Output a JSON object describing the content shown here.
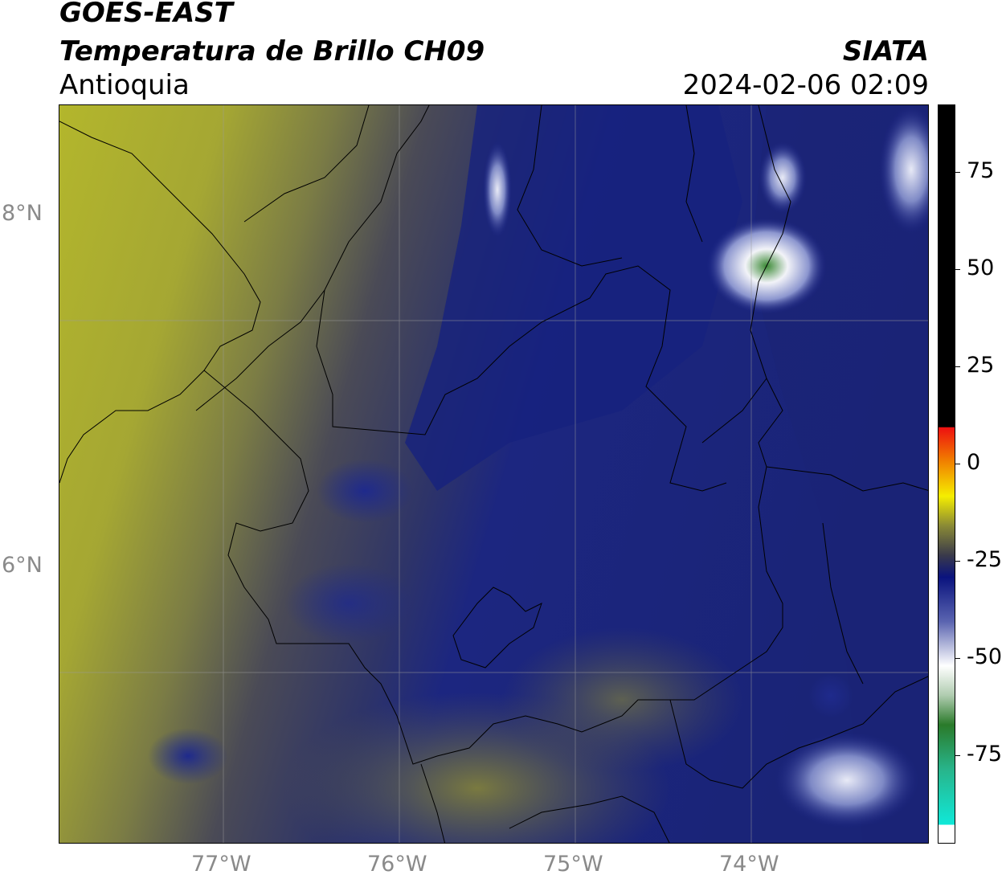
{
  "header": {
    "satellite": "GOES-EAST",
    "product": "Temperatura de Brillo CH09",
    "region": "Antioquia",
    "org": "SIATA",
    "datetime": "2024-02-06 02:09"
  },
  "map": {
    "lat_labels": [
      "8°N",
      "6°N"
    ],
    "lon_labels": [
      "77°W",
      "76°W",
      "75°W",
      "74°W"
    ]
  },
  "colorbar": {
    "ticks": [
      "75",
      "50",
      "25",
      "0",
      "-25",
      "-50",
      "-75"
    ],
    "colors": {
      "hot": "#000000",
      "warm_red": "#e01010",
      "orange": "#f59000",
      "yellow": "#f5f000",
      "olive": "#8a8a30",
      "dark": "#3a3a4a",
      "navy": "#101c7c",
      "blue_light": "#b8c0e4",
      "white": "#ffffff",
      "green": "#2a8030",
      "cyan": "#10e0d0"
    }
  },
  "colors": {
    "yellow_region": "#b5b82a",
    "olive_region": "#8d8f3a",
    "dark_region": "#3e3f55",
    "navy_region": "#27306f",
    "deep_navy": "#0f1a82",
    "cloud_white": "#e8eaf6",
    "cloud_green": "#4a8a3a"
  }
}
